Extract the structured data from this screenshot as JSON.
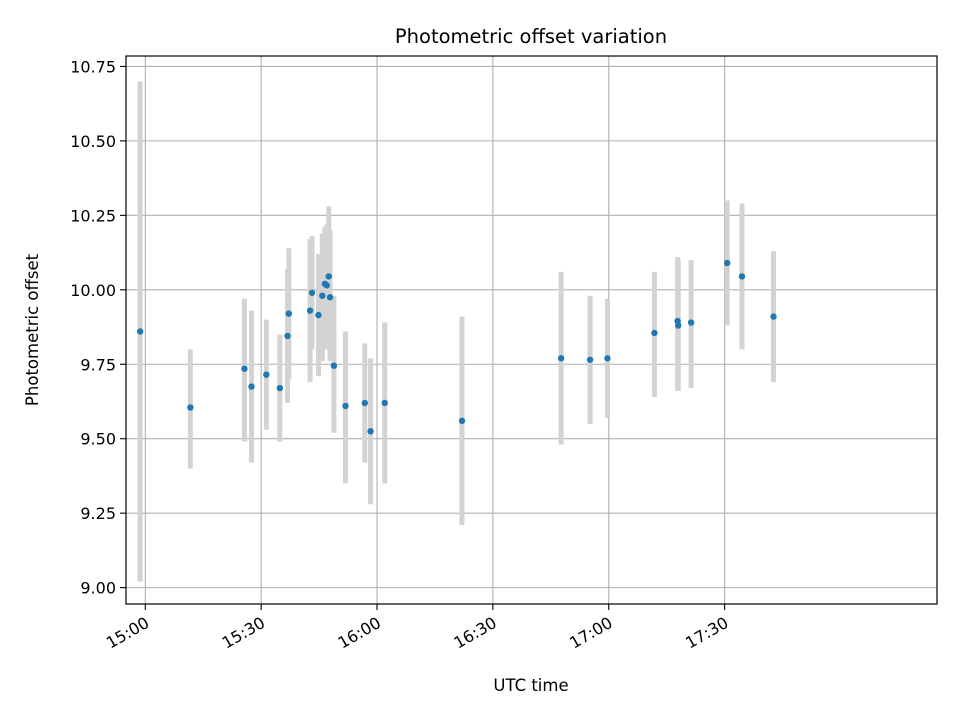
{
  "chart_data": {
    "type": "scatter",
    "title": "Photometric offset variation",
    "xlabel": "UTC time",
    "ylabel": "Photometric offset",
    "xlim": [
      "14:55",
      "18:25"
    ],
    "ylim": [
      8.945,
      10.785
    ],
    "x_ticks": [
      "15:00",
      "15:30",
      "16:00",
      "16:30",
      "17:00",
      "17:30"
    ],
    "y_ticks": [
      "9.00",
      "9.25",
      "9.50",
      "9.75",
      "10.00",
      "10.25",
      "10.50",
      "10.75"
    ],
    "grid": true,
    "colors": {
      "point": "#1f77b4",
      "errorbar": "#d3d3d3",
      "grid": "#b0b0b0"
    },
    "points": [
      {
        "x": "14:58:40",
        "y": 9.86,
        "ylo": 9.02,
        "yhi": 10.7
      },
      {
        "x": "15:11:40",
        "y": 9.605,
        "ylo": 9.4,
        "yhi": 9.8
      },
      {
        "x": "15:25:40",
        "y": 9.735,
        "ylo": 9.49,
        "yhi": 9.97
      },
      {
        "x": "15:27:30",
        "y": 9.675,
        "ylo": 9.42,
        "yhi": 9.93
      },
      {
        "x": "15:31:20",
        "y": 9.715,
        "ylo": 9.53,
        "yhi": 9.9
      },
      {
        "x": "15:34:50",
        "y": 9.67,
        "ylo": 9.49,
        "yhi": 9.85
      },
      {
        "x": "15:36:50",
        "y": 9.845,
        "ylo": 9.62,
        "yhi": 10.07
      },
      {
        "x": "15:37:10",
        "y": 9.92,
        "ylo": 9.7,
        "yhi": 10.14
      },
      {
        "x": "15:42:40",
        "y": 9.93,
        "ylo": 9.69,
        "yhi": 10.17
      },
      {
        "x": "15:43:10",
        "y": 9.99,
        "ylo": 9.8,
        "yhi": 10.18
      },
      {
        "x": "15:44:50",
        "y": 9.915,
        "ylo": 9.71,
        "yhi": 10.12
      },
      {
        "x": "15:45:50",
        "y": 9.98,
        "ylo": 9.76,
        "yhi": 10.19
      },
      {
        "x": "15:46:30",
        "y": 10.02,
        "ylo": 9.8,
        "yhi": 10.21
      },
      {
        "x": "15:47:00",
        "y": 10.015,
        "ylo": 9.8,
        "yhi": 10.22
      },
      {
        "x": "15:47:30",
        "y": 10.045,
        "ylo": 9.82,
        "yhi": 10.28
      },
      {
        "x": "15:47:50",
        "y": 9.975,
        "ylo": 9.76,
        "yhi": 10.2
      },
      {
        "x": "15:48:50",
        "y": 9.745,
        "ylo": 9.52,
        "yhi": 9.98
      },
      {
        "x": "15:51:50",
        "y": 9.61,
        "ylo": 9.35,
        "yhi": 9.86
      },
      {
        "x": "15:56:50",
        "y": 9.62,
        "ylo": 9.42,
        "yhi": 9.82
      },
      {
        "x": "15:58:20",
        "y": 9.525,
        "ylo": 9.28,
        "yhi": 9.77
      },
      {
        "x": "16:02:00",
        "y": 9.62,
        "ylo": 9.35,
        "yhi": 9.89
      },
      {
        "x": "16:22:00",
        "y": 9.56,
        "ylo": 9.21,
        "yhi": 9.91
      },
      {
        "x": "16:47:40",
        "y": 9.77,
        "ylo": 9.48,
        "yhi": 10.06
      },
      {
        "x": "16:55:10",
        "y": 9.765,
        "ylo": 9.55,
        "yhi": 9.98
      },
      {
        "x": "16:59:40",
        "y": 9.77,
        "ylo": 9.57,
        "yhi": 9.97
      },
      {
        "x": "17:11:50",
        "y": 9.855,
        "ylo": 9.64,
        "yhi": 10.06
      },
      {
        "x": "17:17:50",
        "y": 9.895,
        "ylo": 9.66,
        "yhi": 10.11
      },
      {
        "x": "17:18:00",
        "y": 9.88,
        "ylo": 9.66,
        "yhi": 10.1
      },
      {
        "x": "17:21:20",
        "y": 9.89,
        "ylo": 9.67,
        "yhi": 10.1
      },
      {
        "x": "17:30:40",
        "y": 10.09,
        "ylo": 9.88,
        "yhi": 10.3
      },
      {
        "x": "17:34:30",
        "y": 10.045,
        "ylo": 9.8,
        "yhi": 10.29
      },
      {
        "x": "17:42:40",
        "y": 9.91,
        "ylo": 9.69,
        "yhi": 10.13
      }
    ]
  }
}
